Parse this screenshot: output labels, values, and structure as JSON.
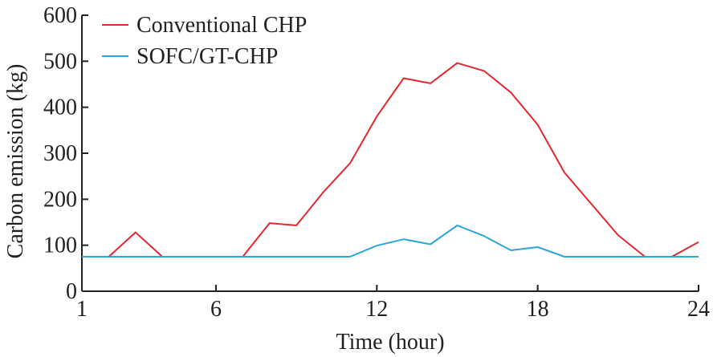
{
  "chart_data": {
    "type": "line",
    "xlabel": "Time (hour)",
    "ylabel": "Carbon emission (kg)",
    "xlim": [
      1,
      24
    ],
    "ylim": [
      0,
      600
    ],
    "xticks": [
      1,
      6,
      12,
      18,
      24
    ],
    "yticks": [
      0,
      100,
      200,
      300,
      400,
      500,
      600
    ],
    "grid": false,
    "legend_position": "top-left",
    "x": [
      1,
      2,
      3,
      4,
      5,
      6,
      7,
      8,
      9,
      10,
      11,
      12,
      13,
      14,
      15,
      16,
      17,
      18,
      19,
      20,
      21,
      22,
      23,
      24
    ],
    "series": [
      {
        "name": "Conventional CHP",
        "color": "#e0282e",
        "values": [
          75,
          75,
          128,
          75,
          75,
          75,
          75,
          148,
          143,
          215,
          278,
          380,
          463,
          452,
          496,
          479,
          432,
          362,
          258,
          190,
          122,
          75,
          75,
          107
        ]
      },
      {
        "name": "SOFC/GT-CHP",
        "color": "#2aa6d8",
        "values": [
          75,
          75,
          75,
          75,
          75,
          75,
          75,
          75,
          75,
          75,
          75,
          99,
          113,
          102,
          143,
          120,
          89,
          96,
          75,
          75,
          75,
          75,
          75,
          75
        ]
      }
    ]
  }
}
